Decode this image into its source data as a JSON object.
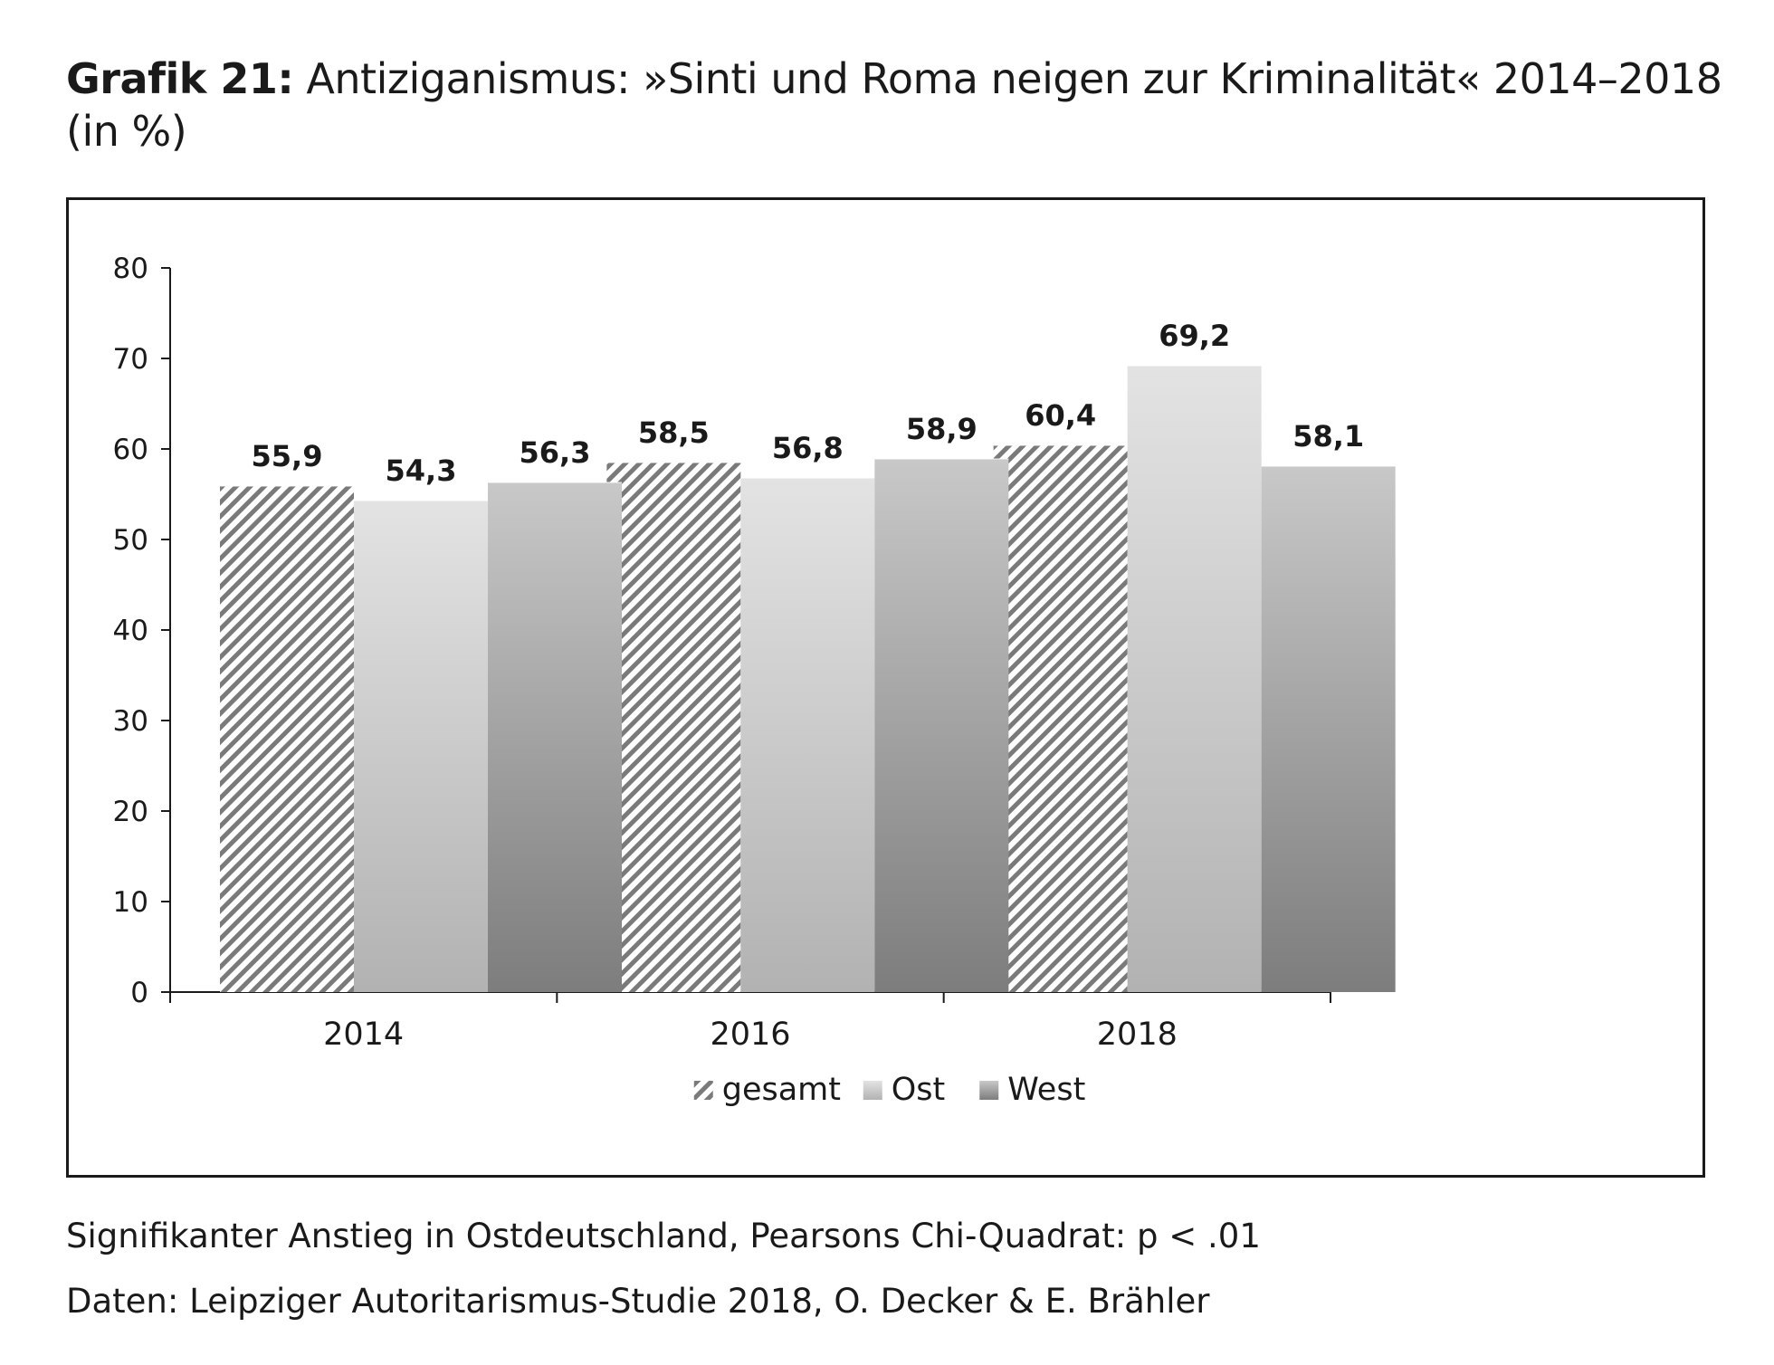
{
  "header": {
    "title_lead": "Grafik 21:",
    "title_rest": "Antiziganismus: »Sinti und Roma neigen zur Kriminalität« 2014–2018",
    "title_line2": "(in %)"
  },
  "footer": {
    "note": "Signifikanter Anstieg in Ostdeutschland, Pearsons Chi-Quadrat: p < .01",
    "source": "Daten: Leipziger Autoritarismus-Studie 2018, O. Decker & E. Brähler"
  },
  "chart_data": {
    "type": "bar",
    "categories": [
      "2014",
      "2016",
      "2018"
    ],
    "series": [
      {
        "name": "gesamt",
        "values": [
          55.9,
          58.5,
          60.4
        ],
        "labels": [
          "55,9",
          "58,5",
          "60,4"
        ],
        "fill": "hatched"
      },
      {
        "name": "Ost",
        "values": [
          54.3,
          56.8,
          69.2
        ],
        "labels": [
          "54,3",
          "56,8",
          "69,2"
        ],
        "fill": "light-gradient"
      },
      {
        "name": "West",
        "values": [
          56.3,
          58.9,
          58.1
        ],
        "labels": [
          "56,3",
          "58,9",
          "58,1"
        ],
        "fill": "dark-gradient"
      }
    ],
    "ylim": [
      0,
      80
    ],
    "yticks": [
      0,
      10,
      20,
      30,
      40,
      50,
      60,
      70,
      80
    ],
    "grid": false,
    "legend_position": "bottom-center",
    "colors": {
      "hatch": "#7a7a7a",
      "light_top": "#e3e3e3",
      "light_bottom": "#b2b2b2",
      "dark_top": "#c8c8c8",
      "dark_bottom": "#7d7d7d"
    }
  }
}
